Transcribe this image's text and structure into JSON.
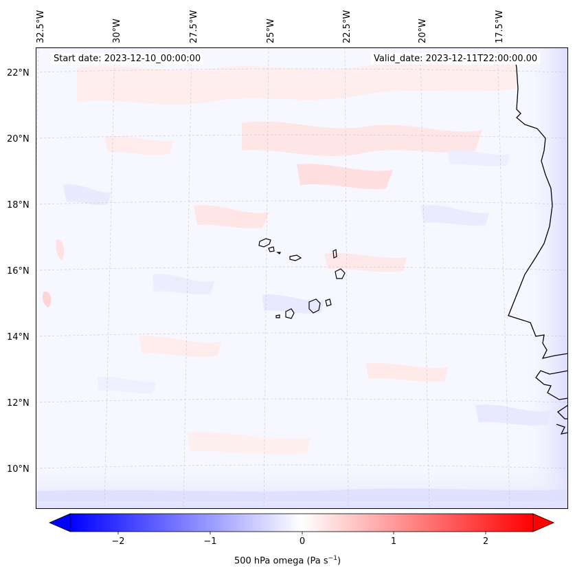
{
  "map": {
    "start_label": "Start date: 2023-12-10_00:00:00",
    "valid_label": "Valid_date: 2023-12-11T22:00:00.00",
    "lon_ticks": [
      "32.5°W",
      "30°W",
      "27.5°W",
      "25°W",
      "22.5°W",
      "20°W",
      "17.5°W"
    ],
    "lat_ticks": [
      "22°N",
      "20°N",
      "18°N",
      "16°N",
      "14°N",
      "12°N",
      "10°N"
    ]
  },
  "colorbar": {
    "ticks": [
      "−2",
      "−1",
      "0",
      "1",
      "2"
    ],
    "label_main": "500 hPa omega (Pa s",
    "label_sup": "−1",
    "label_end": ")",
    "min_color": "#0000ff",
    "mid_color": "#ffffff",
    "max_color": "#ff0000"
  }
}
